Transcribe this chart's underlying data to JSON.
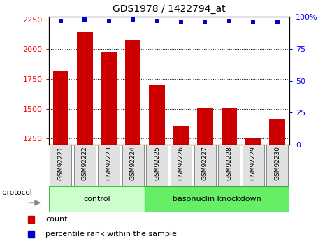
{
  "title": "GDS1978 / 1422794_at",
  "categories": [
    "GSM92221",
    "GSM92222",
    "GSM92223",
    "GSM92224",
    "GSM92225",
    "GSM92226",
    "GSM92227",
    "GSM92228",
    "GSM92229",
    "GSM92230"
  ],
  "bar_values": [
    1820,
    2140,
    1975,
    2080,
    1700,
    1350,
    1510,
    1505,
    1255,
    1410
  ],
  "percentile_values": [
    97,
    98,
    97,
    98,
    97,
    96,
    96,
    97,
    96,
    96
  ],
  "bar_color": "#cc0000",
  "dot_color": "#0000cc",
  "ylim_left": [
    1200,
    2270
  ],
  "ylim_right": [
    0,
    100
  ],
  "yticks_left": [
    1250,
    1500,
    1750,
    2000,
    2250
  ],
  "yticks_right": [
    0,
    25,
    50,
    75,
    100
  ],
  "ytick_labels_right": [
    "0",
    "25",
    "50",
    "75",
    "100%"
  ],
  "control_label": "control",
  "knockdown_label": "basonuclin knockdown",
  "protocol_label": "protocol",
  "legend_count": "count",
  "legend_percentile": "percentile rank within the sample",
  "control_color": "#ccffcc",
  "knockdown_color": "#66ee66",
  "group_box_color": "#e0e0e0",
  "title_fontsize": 10,
  "tick_fontsize": 8,
  "n_control": 4,
  "n_knockdown": 6
}
